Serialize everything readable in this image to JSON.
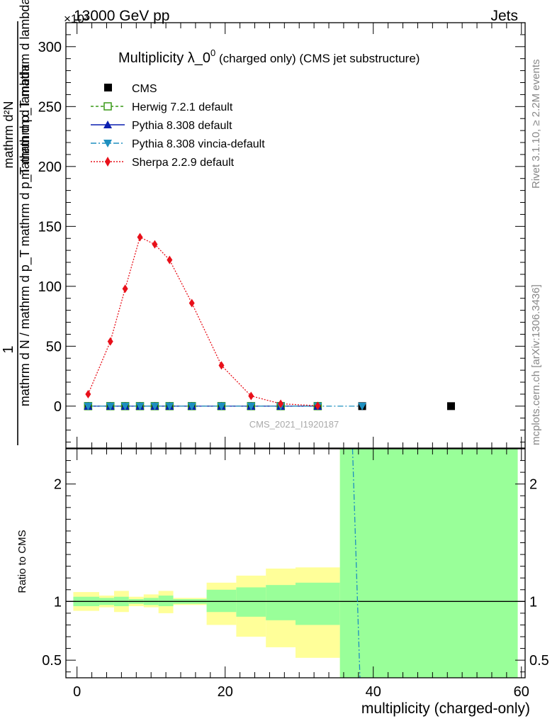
{
  "header": {
    "energy": "13000 GeV pp",
    "process": "Jets",
    "exponent": "×10³"
  },
  "side_text": {
    "rivet": "Rivet 3.1.10, ≥ 2.2M events",
    "mcplots": "mcplots.cern.ch [arXiv:1306.3436]"
  },
  "chart_data": [
    {
      "panel": "main",
      "type": "line",
      "title_main": "Multiplicity λ_0",
      "title_sup": "0",
      "title_suffix": " (charged only) (CMS jet substructure)",
      "ylabel_num": "1",
      "ylabel_den": "mathrm d N / mathrm d p_T mathrm d p_T mathrm d lambda",
      "ylabel_num2": "mathrm d²N",
      "ylabel_den2": "mathrm d p_T mathrm d lambda",
      "ylabel_full_top": "mathrm d²N",
      "ylabel_full_bottom": "mathrm d N / mathrm d p_T mathrm d p_T mathrm d lambda",
      "xlim": [
        -1.5,
        60.5
      ],
      "ylim": [
        -35,
        320
      ],
      "yticks": [
        0,
        50,
        100,
        150,
        200,
        250,
        300
      ],
      "yticklabels": [
        "0",
        "50",
        "100",
        "150",
        "200",
        "250",
        "300"
      ],
      "watermark": "CMS_2021_I1920187",
      "series": [
        {
          "name": "CMS",
          "style": "square",
          "color": "#000000",
          "x": [
            1.5,
            4.5,
            6.5,
            8.5,
            10.5,
            12.5,
            15.5,
            19.5,
            23.5,
            27.5,
            32.5,
            38.5,
            50.5
          ],
          "y": [
            0,
            0,
            0,
            0,
            0,
            0,
            0,
            0,
            0,
            0,
            0,
            0,
            0
          ]
        },
        {
          "name": "Herwig 7.2.1 default",
          "style": "open-square",
          "color": "#3a9a18",
          "x": [
            1.5,
            4.5,
            6.5,
            8.5,
            10.5,
            12.5,
            15.5,
            19.5,
            23.5,
            27.5,
            32.5
          ],
          "y": [
            0,
            0,
            0,
            0,
            0,
            0,
            0,
            0,
            0,
            0,
            0
          ]
        },
        {
          "name": "Pythia 8.308 default",
          "style": "triangle-up",
          "color": "#0a1fb0",
          "x": [
            1.5,
            4.5,
            6.5,
            8.5,
            10.5,
            12.5,
            15.5,
            19.5,
            23.5,
            27.5,
            32.5
          ],
          "y": [
            0,
            0,
            0,
            0,
            0,
            0,
            0,
            0,
            0,
            0,
            0
          ]
        },
        {
          "name": "Pythia 8.308 vincia-default",
          "style": "triangle-down",
          "color": "#1e8fbf",
          "x": [
            1.5,
            4.5,
            6.5,
            8.5,
            10.5,
            12.5,
            15.5,
            19.5,
            23.5,
            27.5,
            32.5,
            38.5
          ],
          "y": [
            0,
            0,
            0,
            0,
            0,
            0,
            0,
            0,
            0,
            0,
            0,
            0
          ]
        },
        {
          "name": "Sherpa 2.2.9 default",
          "style": "diamond",
          "color": "#e8101a",
          "x": [
            1.5,
            4.5,
            6.5,
            8.5,
            10.5,
            12.5,
            15.5,
            19.5,
            23.5,
            27.5,
            32.5
          ],
          "y": [
            10,
            54,
            98,
            141,
            135,
            122,
            86,
            34,
            8.5,
            2,
            0.3
          ]
        }
      ]
    },
    {
      "panel": "ratio",
      "type": "area",
      "ylabel": "Ratio to CMS",
      "xlabel": "multiplicity (charged-only)",
      "xlim": [
        -1.5,
        60.5
      ],
      "ylim": [
        0.35,
        2.3
      ],
      "yticks": [
        0.5,
        1,
        2
      ],
      "yticklabels": [
        "0.5",
        "1",
        "2"
      ],
      "xticks": [
        0,
        20,
        40,
        60
      ],
      "xticklabels": [
        "0",
        "20",
        "40",
        "60"
      ],
      "bands": [
        {
          "x0": -0.5,
          "x1": 3,
          "green": [
            0.96,
            1.04
          ],
          "yellow": [
            0.92,
            1.08
          ]
        },
        {
          "x0": 3,
          "x1": 5,
          "green": [
            0.97,
            1.03
          ],
          "yellow": [
            0.95,
            1.05
          ]
        },
        {
          "x0": 5,
          "x1": 7,
          "green": [
            0.96,
            1.04
          ],
          "yellow": [
            0.91,
            1.09
          ]
        },
        {
          "x0": 7,
          "x1": 9,
          "green": [
            0.98,
            1.02
          ],
          "yellow": [
            0.96,
            1.04
          ]
        },
        {
          "x0": 9,
          "x1": 11,
          "green": [
            0.97,
            1.03
          ],
          "yellow": [
            0.95,
            1.06
          ]
        },
        {
          "x0": 11,
          "x1": 13,
          "green": [
            0.96,
            1.05
          ],
          "yellow": [
            0.9,
            1.09
          ]
        },
        {
          "x0": 13,
          "x1": 17.5,
          "green": [
            0.98,
            1.02
          ],
          "yellow": [
            0.97,
            1.03
          ]
        },
        {
          "x0": 17.5,
          "x1": 21.5,
          "green": [
            0.91,
            1.1
          ],
          "yellow": [
            0.8,
            1.16
          ]
        },
        {
          "x0": 21.5,
          "x1": 25.5,
          "green": [
            0.87,
            1.12
          ],
          "yellow": [
            0.7,
            1.22
          ]
        },
        {
          "x0": 25.5,
          "x1": 29.5,
          "green": [
            0.84,
            1.14
          ],
          "yellow": [
            0.61,
            1.28
          ]
        },
        {
          "x0": 29.5,
          "x1": 35.5,
          "green": [
            0.8,
            1.16
          ],
          "yellow": [
            0.52,
            1.29
          ]
        },
        {
          "x0": 35.5,
          "x1": 59.5,
          "green": [
            0.35,
            2.3
          ],
          "yellow": [
            0.35,
            2.3
          ]
        }
      ],
      "series": [
        {
          "name": "Pythia 8.308 vincia-default ratio",
          "color": "#1e8fbf",
          "x": [
            37.2,
            38.2
          ],
          "y": [
            2.3,
            0.35
          ]
        }
      ]
    }
  ]
}
